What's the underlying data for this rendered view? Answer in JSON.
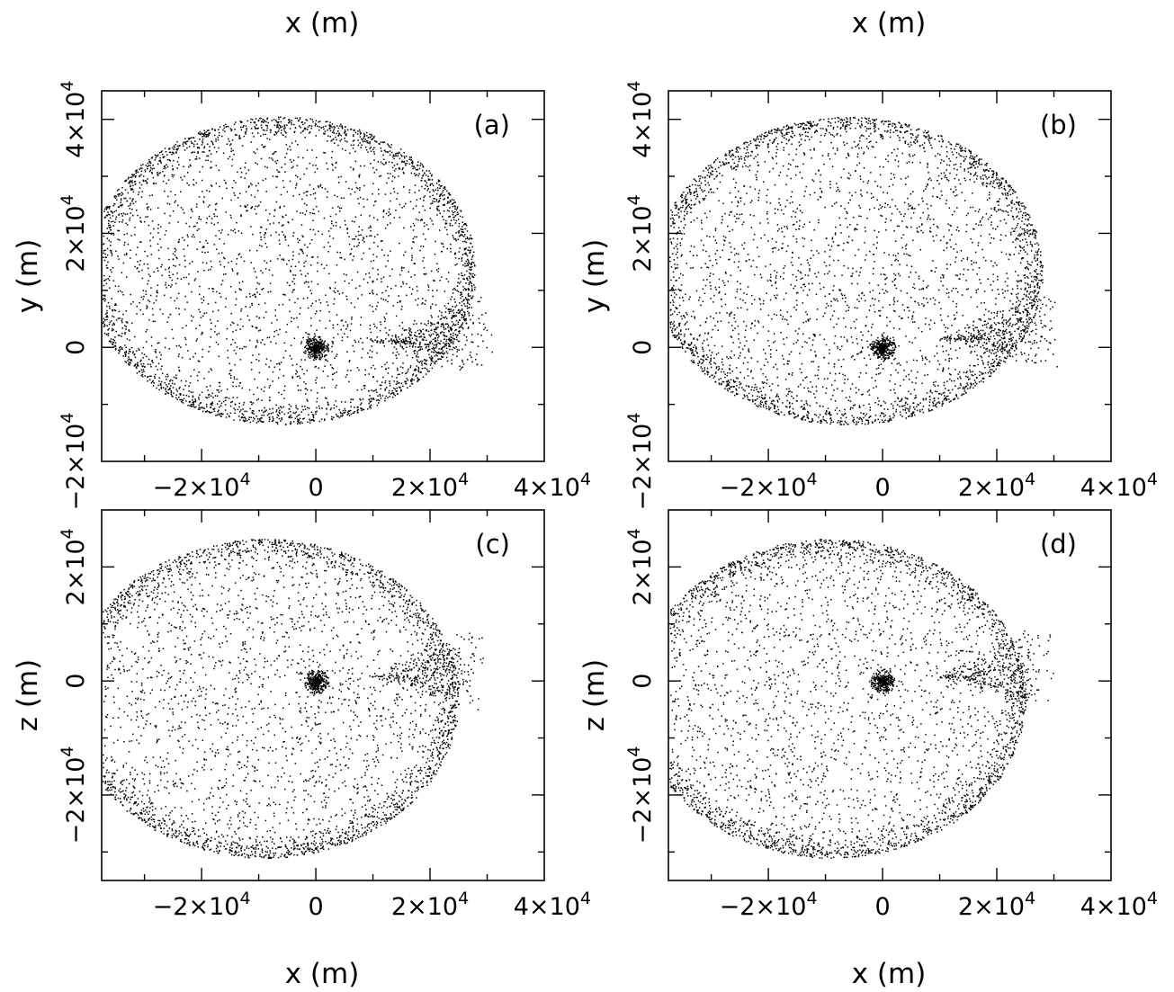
{
  "figure": {
    "top_xlabel_left": "x (m)",
    "top_xlabel_right": "x (m)",
    "bottom_xlabel_left": "x (m)",
    "bottom_xlabel_right": "x (m)"
  },
  "chart_data": [
    {
      "type": "scatter",
      "panel_label": "(a)",
      "xlabel": "x (m)",
      "ylabel": "y (m)",
      "xlim": [
        -37500,
        40000
      ],
      "ylim": [
        -20000,
        45000
      ],
      "x_tick_values": [
        -20000,
        0,
        20000,
        40000
      ],
      "x_tick_labels": [
        {
          "base": "−2×10",
          "exp": "4"
        },
        {
          "base": "0",
          "exp": ""
        },
        {
          "base": "2×10",
          "exp": "4"
        },
        {
          "base": "4×10",
          "exp": "4"
        }
      ],
      "y_tick_values": [
        -20000,
        0,
        20000,
        40000
      ],
      "y_tick_labels": [
        {
          "base": "−2×10",
          "exp": "4"
        },
        {
          "base": "0",
          "exp": ""
        },
        {
          "base": "2×10",
          "exp": "4"
        },
        {
          "base": "4×10",
          "exp": "4"
        }
      ],
      "cloud": {
        "center_x": -6000,
        "center_y": 13500,
        "radius_x": 34000,
        "radius_y": 27000,
        "tail_x": 28000,
        "tail_y": 2500,
        "core_x": 0,
        "core_y": 0
      },
      "grid": false,
      "color": "#000000"
    },
    {
      "type": "scatter",
      "panel_label": "(b)",
      "xlabel": "x (m)",
      "ylabel": "y (m)",
      "xlim": [
        -37500,
        40000
      ],
      "ylim": [
        -20000,
        45000
      ],
      "x_tick_values": [
        -20000,
        0,
        20000,
        40000
      ],
      "x_tick_labels": [
        {
          "base": "−2×10",
          "exp": "4"
        },
        {
          "base": "0",
          "exp": ""
        },
        {
          "base": "2×10",
          "exp": "4"
        },
        {
          "base": "4×10",
          "exp": "4"
        }
      ],
      "y_tick_values": [
        -20000,
        0,
        20000,
        40000
      ],
      "y_tick_labels": [
        {
          "base": "−2×10",
          "exp": "4"
        },
        {
          "base": "0",
          "exp": ""
        },
        {
          "base": "2×10",
          "exp": "4"
        },
        {
          "base": "4×10",
          "exp": "4"
        }
      ],
      "cloud": {
        "center_x": -6000,
        "center_y": 13500,
        "radius_x": 34000,
        "radius_y": 27000,
        "tail_x": 28000,
        "tail_y": 3500,
        "core_x": 0,
        "core_y": 0
      },
      "grid": false,
      "color": "#000000"
    },
    {
      "type": "scatter",
      "panel_label": "(c)",
      "xlabel": "x (m)",
      "ylabel": "z (m)",
      "xlim": [
        -37500,
        40000
      ],
      "ylim": [
        -35000,
        30000
      ],
      "x_tick_values": [
        -20000,
        0,
        20000,
        40000
      ],
      "x_tick_labels": [
        {
          "base": "−2×10",
          "exp": "4"
        },
        {
          "base": "0",
          "exp": ""
        },
        {
          "base": "2×10",
          "exp": "4"
        },
        {
          "base": "4×10",
          "exp": "4"
        }
      ],
      "y_tick_values": [
        -20000,
        0,
        20000
      ],
      "y_tick_labels": [
        {
          "base": "−2×10",
          "exp": "4"
        },
        {
          "base": "0",
          "exp": ""
        },
        {
          "base": "2×10",
          "exp": "4"
        }
      ],
      "cloud": {
        "center_x": -9000,
        "center_y": -3000,
        "radius_x": 34000,
        "radius_y": 28000,
        "tail_x": 27000,
        "tail_y": 2000,
        "core_x": 0,
        "core_y": 0
      },
      "grid": false,
      "color": "#000000"
    },
    {
      "type": "scatter",
      "panel_label": "(d)",
      "xlabel": "x (m)",
      "ylabel": "z (m)",
      "xlim": [
        -37500,
        40000
      ],
      "ylim": [
        -35000,
        30000
      ],
      "x_tick_values": [
        -20000,
        0,
        20000,
        40000
      ],
      "x_tick_labels": [
        {
          "base": "−2×10",
          "exp": "4"
        },
        {
          "base": "0",
          "exp": ""
        },
        {
          "base": "2×10",
          "exp": "4"
        },
        {
          "base": "4×10",
          "exp": "4"
        }
      ],
      "y_tick_values": [
        -20000,
        0,
        20000
      ],
      "y_tick_labels": [
        {
          "base": "−2×10",
          "exp": "4"
        },
        {
          "base": "0",
          "exp": ""
        },
        {
          "base": "2×10",
          "exp": "4"
        }
      ],
      "cloud": {
        "center_x": -9000,
        "center_y": -3000,
        "radius_x": 34000,
        "radius_y": 28000,
        "tail_x": 27000,
        "tail_y": 2000,
        "core_x": 0,
        "core_y": 0
      },
      "grid": false,
      "color": "#000000"
    }
  ]
}
